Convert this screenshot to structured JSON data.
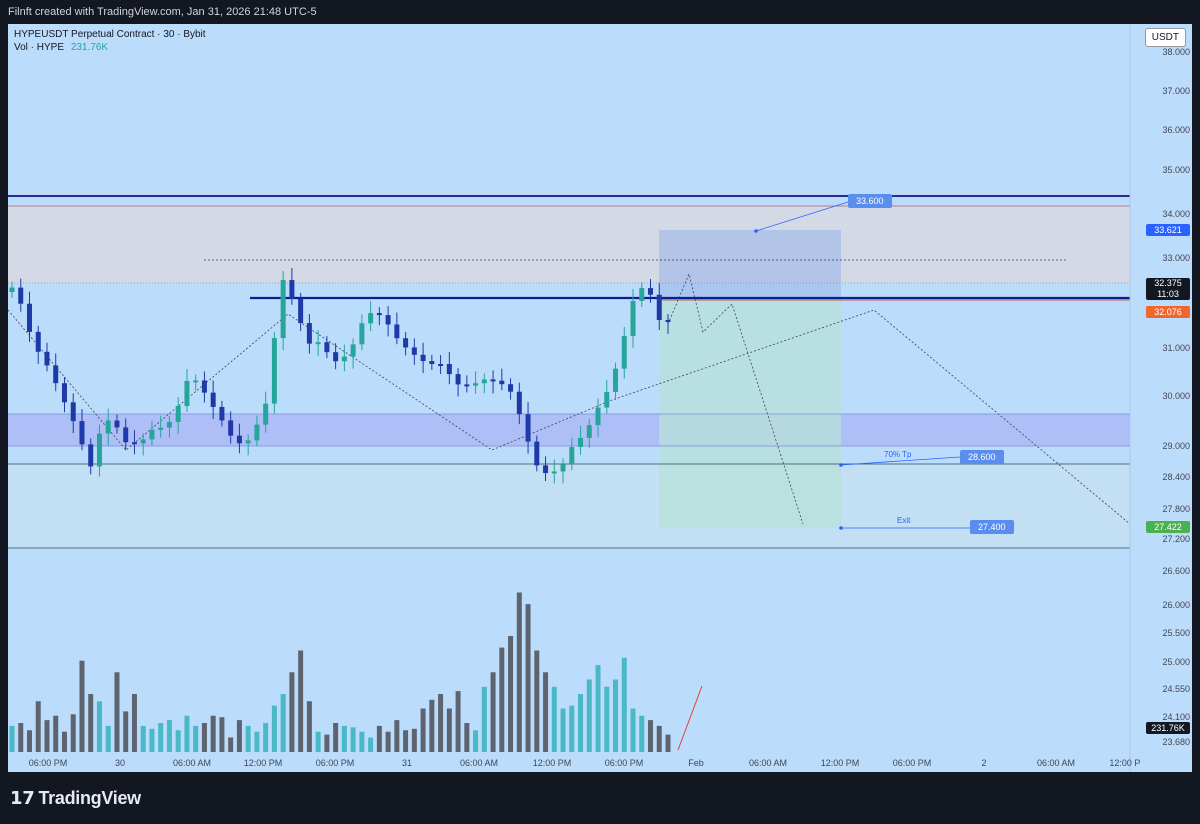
{
  "header": {
    "attribution": "Filnft created with TradingView.com, Jan 31, 2026 21:48 UTC-5"
  },
  "legend": {
    "title": "HYPEUSDT Perpetual Contract · 30 · Bybit",
    "vol_label": "Vol · HYPE",
    "vol_value": "231.76K"
  },
  "currency_button": "USDT",
  "price_axis": [
    "38.000",
    "37.000",
    "36.000",
    "35.000",
    "34.000",
    "33.000",
    "31.000",
    "30.000",
    "29.000",
    "28.400",
    "27.800",
    "27.200",
    "26.600",
    "26.000",
    "25.500",
    "25.000",
    "24.550",
    "24.100",
    "23.680"
  ],
  "price_badges": {
    "target_badge": "33.621",
    "last_price": "32.375",
    "countdown": "11:03",
    "stop_price": "32.076",
    "exit_badge": "27.422",
    "volume_badge": "231.76K"
  },
  "time_axis": [
    "06:00 PM",
    "30",
    "06:00 AM",
    "12:00 PM",
    "06:00 PM",
    "31",
    "06:00 AM",
    "12:00 PM",
    "06:00 PM",
    "Feb",
    "06:00 AM",
    "12:00 PM",
    "06:00 PM",
    "2",
    "06:00 AM",
    "12:00 P"
  ],
  "annotations": {
    "target_label": "33.600",
    "tp_caption": "70% Tp",
    "tp_label": "28.600",
    "exit_caption": "Exit",
    "exit_label": "27.400"
  },
  "colors": {
    "background": "#bcdcfb",
    "up_candle": "#26a69a",
    "down_candle": "#1e3aa8",
    "volume_up": "#4bb8c8",
    "volume_down": "#5d6470",
    "resistance_line": "#0d1f8c",
    "supply_zone": "#d7d9e0",
    "demand_zone": "#aab7f5"
  },
  "footer": {
    "brand": "TradingView"
  }
}
